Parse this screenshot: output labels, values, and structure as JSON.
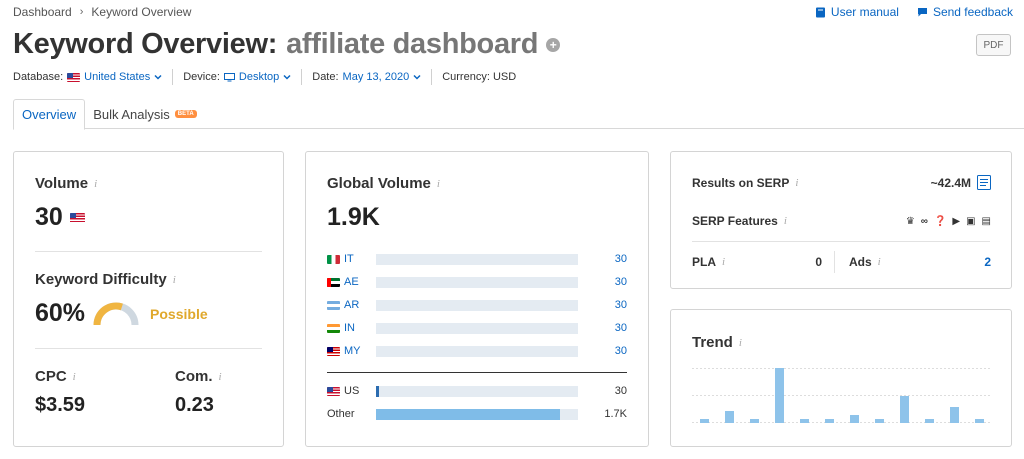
{
  "breadcrumb": {
    "home": "Dashboard",
    "current": "Keyword Overview"
  },
  "links": {
    "manual": "User manual",
    "feedback": "Send feedback"
  },
  "title": {
    "prefix": "Keyword Overview:",
    "keyword": "affiliate dashboard",
    "pdf": "PDF"
  },
  "filters": {
    "database_label": "Database:",
    "database_value": "United States",
    "device_label": "Device:",
    "device_value": "Desktop",
    "date_label": "Date:",
    "date_value": "May 13, 2020",
    "currency": "Currency: USD"
  },
  "tabs": {
    "overview": "Overview",
    "bulk": "Bulk Analysis",
    "beta": "BETA"
  },
  "volume": {
    "label": "Volume",
    "info": "i",
    "value": "30"
  },
  "difficulty": {
    "label": "Keyword Difficulty",
    "info": "i",
    "value": "60%",
    "status": "Possible",
    "percent": 60,
    "color": "#f0b541"
  },
  "cpc": {
    "label": "CPC",
    "info": "i",
    "value": "$3.59"
  },
  "com": {
    "label": "Com.",
    "info": "i",
    "value": "0.23"
  },
  "global_volume": {
    "label": "Global Volume",
    "info": "i",
    "value": "1.9K",
    "countries": [
      {
        "code": "IT",
        "value": "30",
        "fill": 0
      },
      {
        "code": "AE",
        "value": "30",
        "fill": 0
      },
      {
        "code": "AR",
        "value": "30",
        "fill": 0
      },
      {
        "code": "IN",
        "value": "30",
        "fill": 0
      },
      {
        "code": "MY",
        "value": "30",
        "fill": 0
      }
    ],
    "us": {
      "code": "US",
      "value": "30",
      "fill": 0.015
    },
    "other": {
      "label": "Other",
      "value": "1.7K",
      "fill": 0.91
    }
  },
  "serp": {
    "results_label": "Results on SERP",
    "info": "i",
    "results_value": "~42.4M",
    "features_label": "SERP Features",
    "pla_label": "PLA",
    "pla_value": "0",
    "ads_label": "Ads",
    "ads_value": "2"
  },
  "trend": {
    "label": "Trend",
    "info": "i",
    "values": [
      0.08,
      0.22,
      0.08,
      1.0,
      0.08,
      0.08,
      0.15,
      0.08,
      0.5,
      0.08,
      0.3,
      0.08
    ]
  },
  "colors": {
    "accent": "#0a66c2",
    "bar": "#7fbce8",
    "difficulty": "#f0b541"
  }
}
